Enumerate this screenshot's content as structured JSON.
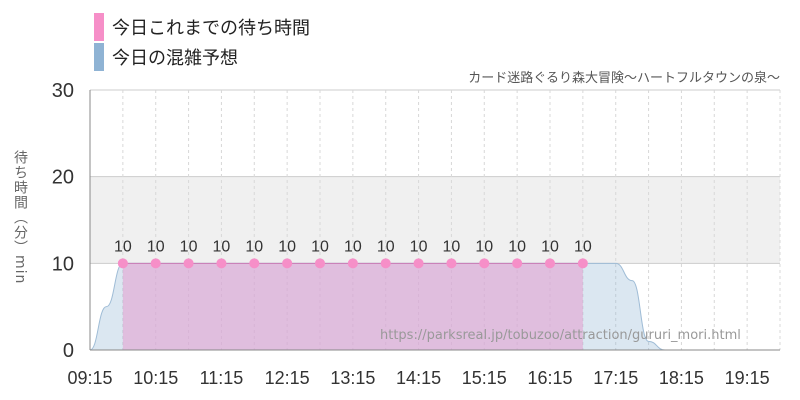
{
  "legend": {
    "today_actual": "今日これまでの待ち時間",
    "today_forecast": "今日の混雑予想"
  },
  "colors": {
    "actual": "#f68fc8",
    "forecast": "#8fb3d4",
    "band": "#f0f0f0",
    "grid": "#cccccc"
  },
  "attraction_name": "カード迷路ぐるり森大冒険～ハートフルタウンの泉～",
  "source_url": "https://parksreal.jp/tobuzoo/attraction/gururi_mori.html",
  "chart_data": {
    "type": "area",
    "title": "カード迷路ぐるり森大冒険～ハートフルタウンの泉～",
    "ylabel": "待ち時間（分）min",
    "xlabel": "",
    "ylim": [
      0,
      30
    ],
    "yticks": [
      0,
      10,
      20,
      30
    ],
    "xlim": [
      "09:15",
      "19:45"
    ],
    "xticks": [
      "09:15",
      "10:15",
      "11:15",
      "12:15",
      "13:15",
      "14:15",
      "15:15",
      "16:15",
      "17:15",
      "18:15",
      "19:15"
    ],
    "grid": true,
    "legend_position": "top-left",
    "series": [
      {
        "name": "今日これまでの待ち時間",
        "style": "area-with-points",
        "x": [
          "09:45",
          "10:15",
          "10:45",
          "11:15",
          "11:45",
          "12:15",
          "12:45",
          "13:15",
          "13:45",
          "14:15",
          "14:45",
          "15:15",
          "15:45",
          "16:15",
          "16:45"
        ],
        "values": [
          10,
          10,
          10,
          10,
          10,
          10,
          10,
          10,
          10,
          10,
          10,
          10,
          10,
          10,
          10
        ],
        "data_labels": [
          "10",
          "10",
          "10",
          "10",
          "10",
          "10",
          "10",
          "10",
          "10",
          "10",
          "10",
          "10",
          "10",
          "10",
          "10"
        ]
      },
      {
        "name": "今日の混雑予想",
        "style": "area",
        "x": [
          "09:15",
          "09:30",
          "09:45",
          "10:15",
          "16:45",
          "17:00",
          "17:15",
          "17:30",
          "17:45",
          "18:00",
          "18:15",
          "18:30",
          "19:15",
          "19:45"
        ],
        "values": [
          0,
          5,
          10,
          10,
          10,
          10,
          10,
          8,
          1,
          0,
          0,
          0,
          0,
          0
        ]
      }
    ]
  }
}
